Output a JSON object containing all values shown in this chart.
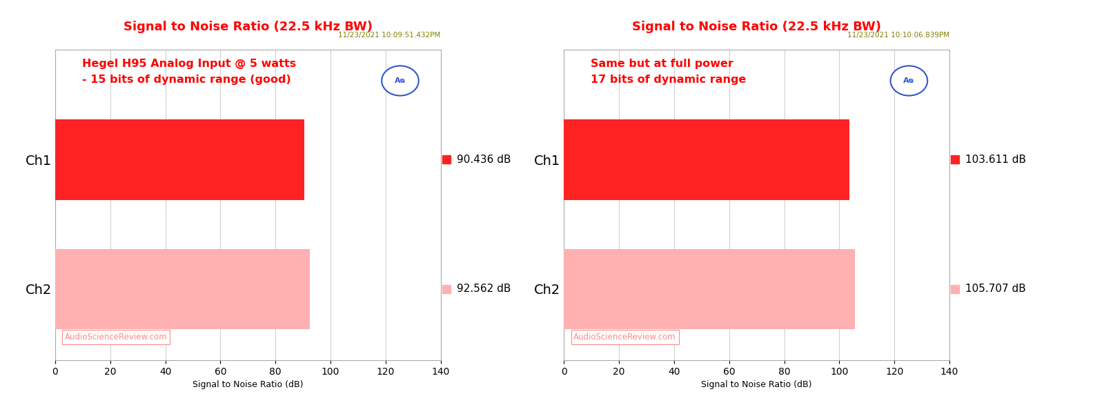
{
  "charts": [
    {
      "title": "Signal to Noise Ratio (22.5 kHz BW)",
      "timestamp": "11/23/2021 10:09:51.432PM",
      "annotation_line1": "Hegel H95 Analog Input @ 5 watts",
      "annotation_line2": "- 15 bits of dynamic range (good)",
      "channels": [
        "Ch1",
        "Ch2"
      ],
      "values": [
        90.436,
        92.562
      ],
      "value_labels": [
        "90.436 dB",
        "92.562 dB"
      ],
      "bar_colors": [
        "#FF2222",
        "#FFB0B0"
      ],
      "xlim": [
        0,
        140
      ],
      "xticks": [
        0,
        20,
        40,
        60,
        80,
        100,
        120,
        140
      ],
      "xlabel": "Signal to Noise Ratio (dB)"
    },
    {
      "title": "Signal to Noise Ratio (22.5 kHz BW)",
      "timestamp": "11/23/2021 10:10:06.839PM",
      "annotation_line1": "Same but at full power",
      "annotation_line2": "17 bits of dynamic range",
      "channels": [
        "Ch1",
        "Ch2"
      ],
      "values": [
        103.611,
        105.707
      ],
      "value_labels": [
        "103.611 dB",
        "105.707 dB"
      ],
      "bar_colors": [
        "#FF2222",
        "#FFB0B0"
      ],
      "xlim": [
        0,
        140
      ],
      "xticks": [
        0,
        20,
        40,
        60,
        80,
        100,
        120,
        140
      ],
      "xlabel": "Signal to Noise Ratio (dB)"
    }
  ],
  "title_color": "#FF0000",
  "timestamp_color": "#808000",
  "annotation_color": "#FF0000",
  "watermark_color": "#FF8888",
  "watermark_text": "AudioScienceReview.com",
  "ap_logo_color": "#3355CC",
  "background_color": "#FFFFFF",
  "plot_background": "#FFFFFF",
  "grid_color": "#D0D0D0",
  "label_color": "#000000",
  "value_label_color": "#000000",
  "bar_height": 0.62
}
